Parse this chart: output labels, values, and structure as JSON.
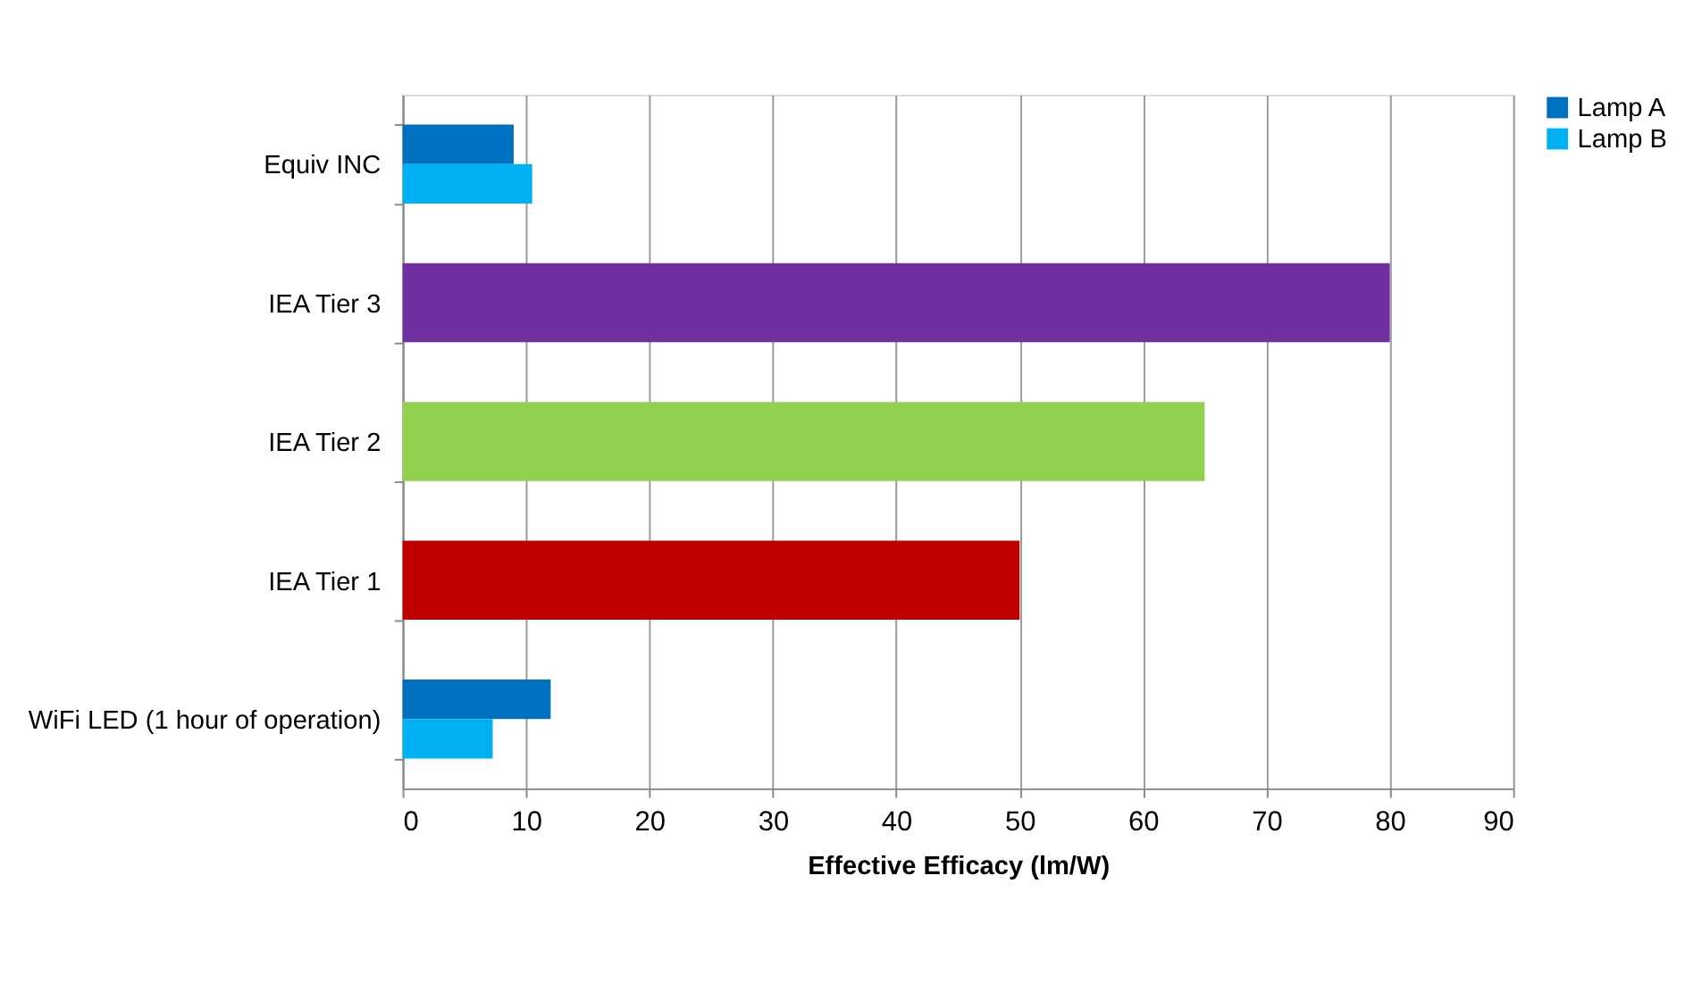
{
  "chart_data": {
    "type": "bar",
    "orientation": "horizontal",
    "xlabel": "Effective Efficacy (lm/W)",
    "categories": [
      "Equiv INC",
      "IEA Tier 3",
      "IEA Tier 2",
      "IEA Tier 1",
      "WiFi LED (1 hour of operation)"
    ],
    "series": [
      {
        "name": "Lamp A",
        "color": "#0070c0",
        "values": [
          9.0,
          null,
          null,
          null,
          12.0
        ]
      },
      {
        "name": "Lamp B",
        "color": "#00b0f0",
        "values": [
          10.5,
          null,
          null,
          null,
          7.3
        ]
      },
      {
        "colors": [
          null,
          "#7030a0",
          "#92d050",
          "#c00000",
          null
        ],
        "values": [
          null,
          80,
          65,
          50,
          null
        ]
      }
    ],
    "xlim": [
      0,
      90
    ],
    "xticks": [
      0,
      10,
      20,
      30,
      40,
      50,
      60,
      70,
      80,
      90
    ],
    "grid": "x",
    "legend": "right"
  }
}
